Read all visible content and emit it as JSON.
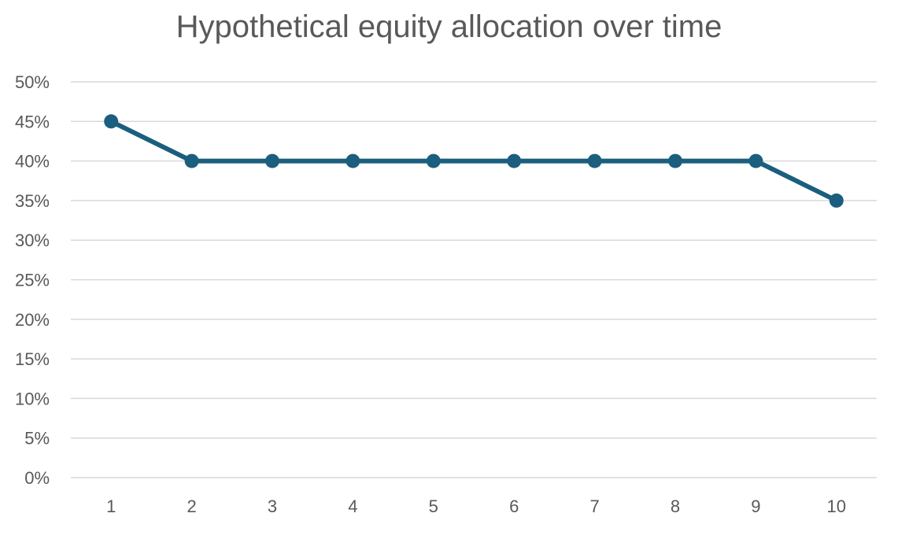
{
  "chart_data": {
    "type": "line",
    "title": "Hypothetical equity allocation over time",
    "xlabel": "",
    "ylabel": "",
    "categories": [
      "1",
      "2",
      "3",
      "4",
      "5",
      "6",
      "7",
      "8",
      "9",
      "10"
    ],
    "series": [
      {
        "values": [
          0.45,
          0.4,
          0.4,
          0.4,
          0.4,
          0.4,
          0.4,
          0.4,
          0.4,
          0.35
        ],
        "color": "#1b5e7e"
      }
    ],
    "ylim": [
      0,
      0.5
    ],
    "yticks": [
      0,
      0.05,
      0.1,
      0.15,
      0.2,
      0.25,
      0.3,
      0.35,
      0.4,
      0.45,
      0.5
    ],
    "ytick_labels": [
      "0%",
      "5%",
      "10%",
      "15%",
      "20%",
      "25%",
      "30%",
      "35%",
      "40%",
      "45%",
      "50%"
    ],
    "grid": true,
    "legend": "none",
    "gridline_color": "#d9d9d9",
    "text_color": "#595959"
  }
}
